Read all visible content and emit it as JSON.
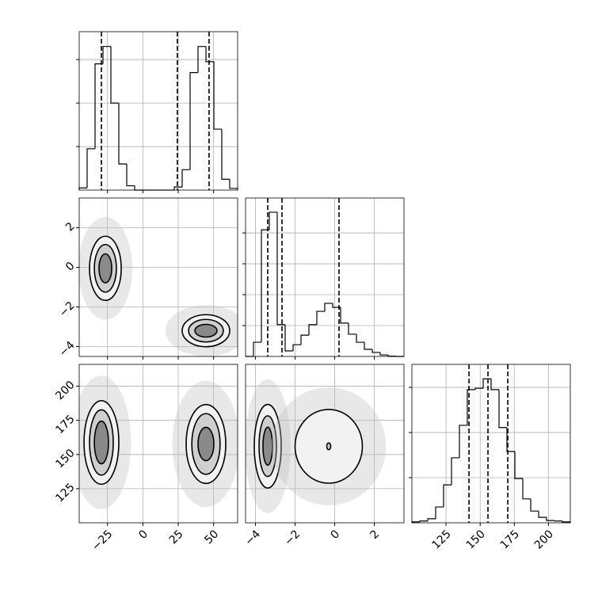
{
  "chart_data": {
    "type": "corner",
    "grid": true,
    "color": "#000000",
    "parameters": [
      {
        "lim": [
          -45,
          67
        ],
        "ticks": [
          {
            "value": -25,
            "label": "−25"
          },
          0,
          25,
          50
        ],
        "hist": {
          "bins": [
            -45,
            -39.4,
            -33.8,
            -28.2,
            -22.6,
            -17,
            -11.4,
            -5.8,
            -0.2,
            5.4,
            11,
            16.6,
            22.2,
            27.8,
            33.4,
            39,
            44.6,
            50.2,
            55.8,
            61.4,
            67
          ],
          "counts": [
            0.05,
            0.95,
            2.9,
            3.3,
            2.0,
            0.6,
            0.1,
            0,
            0,
            0,
            0,
            0,
            0.07,
            0.47,
            2.7,
            3.3,
            2.95,
            1.4,
            0.25,
            0.04
          ],
          "ylim": [
            0,
            3.64
          ],
          "yticks": [
            1,
            2,
            3
          ],
          "quantiles": [
            -29.3,
            24.4,
            46.8
          ]
        }
      },
      {
        "lim": [
          -4.5,
          3.5
        ],
        "ticks": [
          {
            "value": -4,
            "label": "−4"
          },
          {
            "value": -2,
            "label": "−2"
          },
          0,
          2
        ],
        "hist": {
          "bins": [
            -4.5,
            -4.1,
            -3.7,
            -3.3,
            -2.9,
            -2.5,
            -2.1,
            -1.7,
            -1.3,
            -0.9,
            -0.5,
            -0.1,
            0.3,
            0.7,
            1.1,
            1.5,
            1.9,
            2.3,
            2.7,
            3.1,
            3.5
          ],
          "counts": [
            0,
            0.46,
            4.1,
            4.67,
            1.03,
            0.18,
            0.38,
            0.69,
            1.03,
            1.46,
            1.72,
            1.59,
            1.08,
            0.72,
            0.46,
            0.23,
            0.13,
            0.05,
            0.01,
            0
          ],
          "ylim": [
            0,
            5.13
          ],
          "yticks": [
            1,
            2,
            3,
            4
          ],
          "quantiles": [
            -3.38,
            -2.66,
            0.22
          ]
        }
      },
      {
        "lim": [
          100,
          216
        ],
        "ticks": [
          125,
          150,
          175,
          200
        ],
        "hist": {
          "bins": [
            100,
            105.8,
            111.6,
            117.4,
            123.2,
            129,
            134.8,
            140.6,
            146.4,
            152.2,
            158,
            163.8,
            169.6,
            175.4,
            181.2,
            187,
            192.8,
            198.6,
            204.4,
            210.2,
            216
          ],
          "counts": [
            0.02,
            0.04,
            0.09,
            0.35,
            0.84,
            1.44,
            2.16,
            2.95,
            2.98,
            3.19,
            2.95,
            2.11,
            1.58,
            0.98,
            0.53,
            0.26,
            0.12,
            0.05,
            0.04,
            0.02
          ],
          "ylim": [
            0,
            3.51
          ],
          "yticks": [
            1,
            2,
            3
          ],
          "quantiles": [
            141.8,
            155.7,
            170.2
          ]
        }
      }
    ],
    "lower": [
      [
        {
          "clusters": [
            {
              "cx": -26.5,
              "cy": -0.05,
              "levels": [
                {
                  "rx": 11.2,
                  "ry": 1.62
                },
                {
                  "rx": 7.8,
                  "ry": 1.2
                },
                {
                  "rx": 4.5,
                  "ry": 0.73
                }
              ]
            },
            {
              "cx": 44.6,
              "cy": -3.2,
              "levels": [
                {
                  "rx": 16.8,
                  "ry": 0.81
                },
                {
                  "rx": 12.3,
                  "ry": 0.57
                },
                {
                  "rx": 7.8,
                  "ry": 0.32
                }
              ]
            }
          ]
        }
      ],
      [
        {
          "clusters": [
            {
              "cx": -29.3,
              "cy": 158.8,
              "levels": [
                {
                  "rx": 12.3,
                  "ry": 30.6
                },
                {
                  "rx": 8.4,
                  "ry": 23.9
                },
                {
                  "rx": 5,
                  "ry": 15.6
                }
              ]
            },
            {
              "cx": 44.6,
              "cy": 157.7,
              "levels": [
                {
                  "rx": 14,
                  "ry": 28.9
                },
                {
                  "rx": 10,
                  "ry": 22.2
                },
                {
                  "rx": 5.6,
                  "ry": 12.2
                }
              ]
            }
          ]
        },
        {
          "clusters": [
            {
              "cx": -3.38,
              "cy": 156.1,
              "levels": [
                {
                  "rx": 0.68,
                  "ry": 30.6
                },
                {
                  "rx": 0.44,
                  "ry": 22.2
                },
                {
                  "rx": 0.24,
                  "ry": 13.9
                }
              ]
            },
            {
              "cx": -0.3,
              "cy": 156,
              "levels": [
                {
                  "rx": 1.7,
                  "ry": 27
                },
                {
                  "rx": 0.1,
                  "ry": 2.5
                }
              ]
            }
          ]
        }
      ]
    ]
  }
}
